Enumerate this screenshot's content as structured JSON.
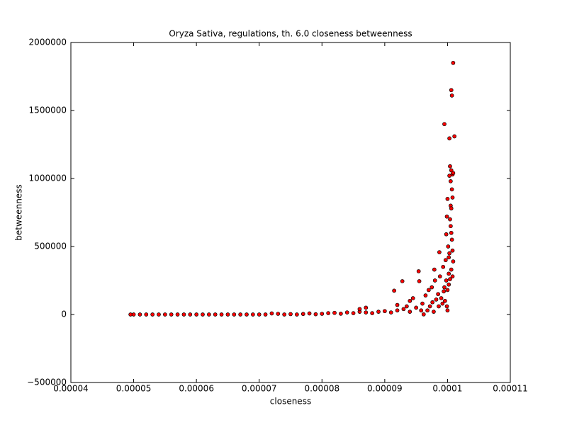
{
  "chart_data": {
    "type": "scatter",
    "title": "Oryza Sativa, regulations, th. 6.0 closeness betweenness",
    "xlabel": "closeness",
    "ylabel": "betweenness",
    "xlim": [
      4e-05,
      0.00011
    ],
    "xticks": [
      4e-05,
      5e-05,
      6e-05,
      7e-05,
      8e-05,
      9e-05,
      0.0001,
      0.00011
    ],
    "ylim": [
      -500000,
      2000000
    ],
    "yticks": [
      {
        "value": -500000,
        "label": "−500000"
      },
      0,
      500000,
      1000000,
      1500000,
      2000000
    ],
    "color": "#ff0000",
    "x": [
      4.95e-05,
      5e-05,
      5.1e-05,
      5.2e-05,
      5.3e-05,
      5.4e-05,
      5.5e-05,
      5.6e-05,
      5.7e-05,
      5.8e-05,
      5.9e-05,
      6e-05,
      6.1e-05,
      6.2e-05,
      6.3e-05,
      6.4e-05,
      6.5e-05,
      6.6e-05,
      6.7e-05,
      6.8e-05,
      6.9e-05,
      7e-05,
      7.1e-05,
      7.2e-05,
      7.3e-05,
      7.4e-05,
      7.5e-05,
      7.6e-05,
      7.7e-05,
      7.8e-05,
      7.9e-05,
      8e-05,
      8.1e-05,
      8.2e-05,
      8.3e-05,
      8.4e-05,
      8.5e-05,
      8.6e-05,
      8.7e-05,
      8.8e-05,
      8.9e-05,
      9e-05,
      9.1e-05,
      9.2e-05,
      9.3e-05,
      9.4e-05,
      9.5e-05,
      8.6e-05,
      8.7e-05,
      9.15e-05,
      9.28e-05,
      9.2e-05,
      9.35e-05,
      9.4e-05,
      9.45e-05,
      9.54e-05,
      9.55e-05,
      9.6e-05,
      9.65e-05,
      9.7e-05,
      9.75e-05,
      9.79e-05,
      9.8e-05,
      9.85e-05,
      9.88e-05,
      9.87e-05,
      9.93e-05,
      9.95e-05,
      9.97e-05,
      9.98e-05,
      9.99e-05,
      0.0001,
      0.0001001,
      0.0001002,
      0.0001003,
      0.0001004,
      0.0001005,
      0.0001006,
      0.0001007,
      0.0001008,
      0.0001005,
      0.0001006,
      0.0001004,
      0.0001005,
      0.0001006,
      0.0001007,
      0.0001008,
      0.0001009,
      0.0001003,
      0.0001002,
      0.0001,
      9.62e-05,
      9.68e-05,
      9.72e-05,
      9.76e-05,
      9.82e-05,
      9.86e-05,
      9.9e-05,
      9.94e-05,
      9.96e-05,
      9.98e-05,
      0.0001,
      0.0001002,
      0.0001004,
      0.0001006,
      0.0001008,
      9.99e-05,
      9.95e-05,
      0.0001009,
      0.0001006,
      0.0001007,
      0.0001011,
      0.0001003,
      0.0001008,
      0.0001009,
      9.58e-05,
      9.78e-05,
      9.92e-05
    ],
    "values": [
      0,
      0,
      0,
      0,
      0,
      0,
      0,
      0,
      0,
      0,
      0,
      0,
      0,
      0,
      0,
      0,
      0,
      0,
      0,
      0,
      0,
      0,
      0,
      8000,
      5000,
      0,
      3000,
      0,
      4000,
      8000,
      2000,
      5000,
      10000,
      12000,
      6000,
      15000,
      10000,
      20000,
      15000,
      10000,
      20000,
      25000,
      15000,
      30000,
      40000,
      20000,
      50000,
      40000,
      50000,
      175000,
      245000,
      70000,
      60000,
      100000,
      120000,
      318000,
      245000,
      80000,
      140000,
      180000,
      200000,
      330000,
      250000,
      150000,
      280000,
      458000,
      350000,
      200000,
      400000,
      590000,
      720000,
      850000,
      500000,
      300000,
      1020000,
      1090000,
      980000,
      1060000,
      920000,
      1030000,
      800000,
      780000,
      700000,
      650000,
      600000,
      550000,
      470000,
      390000,
      450000,
      420000,
      30000,
      1000,
      30000,
      60000,
      90000,
      110000,
      60000,
      120000,
      170000,
      100000,
      250000,
      180000,
      220000,
      260000,
      330000,
      280000,
      60000,
      1400000,
      1850000,
      1650000,
      1610000,
      1310000,
      1295000,
      860000,
      1040000,
      30000,
      20000,
      80000
    ]
  }
}
